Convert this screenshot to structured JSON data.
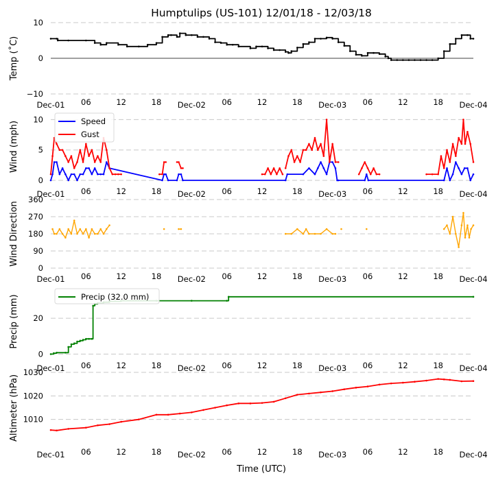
{
  "title": "Humptulips (US-101) 12/01/18 - 12/03/18",
  "xlabel": "Time (UTC)",
  "x_ticks": [
    "Dec-01",
    "06",
    "12",
    "18",
    "Dec-02",
    "06",
    "12",
    "18",
    "Dec-03",
    "06",
    "12",
    "18",
    "Dec-04"
  ],
  "x_tick_hours": [
    0,
    6,
    12,
    18,
    24,
    30,
    36,
    42,
    48,
    54,
    60,
    66,
    72
  ],
  "chart_data": [
    {
      "type": "line",
      "ylabel": "Temp ($^\\circ$C)",
      "ylabel_display": "Temp (˚C)",
      "ylim": [
        -10,
        10
      ],
      "yticks": [
        -10,
        0,
        10
      ],
      "grid_y": [
        -10,
        10
      ],
      "zero_line": true,
      "x_unit": "hours since Dec-01 00:00 UTC",
      "series": [
        {
          "name": "Temp",
          "color": "#000000",
          "x": [
            0,
            1,
            1.2,
            3,
            6,
            7.5,
            8.5,
            9.5,
            11.5,
            13,
            15,
            16.5,
            18,
            19,
            20,
            20.5,
            21.5,
            22,
            23,
            24,
            25,
            26,
            27,
            28,
            29,
            30,
            31,
            32,
            34,
            35,
            36,
            37,
            38,
            39,
            40,
            40.5,
            41,
            42,
            43,
            44,
            45,
            46,
            47,
            48,
            49,
            50,
            51,
            52,
            53,
            54,
            55,
            56,
            57,
            57.5,
            58,
            59,
            60,
            61,
            62,
            63,
            64,
            65,
            66,
            67,
            68,
            69,
            70,
            71,
            71.5,
            72
          ],
          "y": [
            5.5,
            5.5,
            5.0,
            5.0,
            5.0,
            4.3,
            3.8,
            4.3,
            3.8,
            3.3,
            3.3,
            3.8,
            4.3,
            6.0,
            6.5,
            6.5,
            6.0,
            7.0,
            6.5,
            6.5,
            6.0,
            6.0,
            5.5,
            4.5,
            4.3,
            3.8,
            3.8,
            3.3,
            2.8,
            3.3,
            3.3,
            2.8,
            2.3,
            2.3,
            1.8,
            1.5,
            2.0,
            3.0,
            4.0,
            4.5,
            5.5,
            5.5,
            5.8,
            5.5,
            4.5,
            3.5,
            2.0,
            1.0,
            0.7,
            1.5,
            1.5,
            1.2,
            0.5,
            0.0,
            -0.5,
            -0.5,
            -0.5,
            -0.5,
            -0.5,
            -0.5,
            -0.5,
            -0.5,
            0.0,
            2.0,
            4.0,
            5.5,
            6.5,
            6.5,
            5.5,
            5.5
          ]
        }
      ]
    },
    {
      "type": "line",
      "ylabel": "Wind (mph)",
      "ylim": [
        0,
        10.5
      ],
      "yticks": [
        0,
        5,
        10
      ],
      "grid_y": [
        0,
        5,
        10
      ],
      "legend": "top-left",
      "series": [
        {
          "name": "Speed",
          "color": "#0000ff",
          "x": [
            0,
            0.3,
            0.6,
            1,
            1.5,
            2,
            2.5,
            3,
            3.5,
            4,
            4.5,
            5,
            5.5,
            6,
            6.5,
            7,
            7.5,
            8,
            8.5,
            9,
            9.5,
            10,
            19,
            19.3,
            19.6,
            20,
            21.5,
            21.8,
            22.2,
            22.5,
            40,
            40.3,
            43,
            44,
            45,
            45.5,
            46,
            46.5,
            47,
            47.5,
            48,
            48.5,
            48.8,
            49,
            53.5,
            53.8,
            54.1,
            67,
            67.5,
            68,
            68.5,
            69,
            69.5,
            70,
            70.5,
            71,
            71.5,
            72
          ],
          "y": [
            0,
            1,
            3,
            3,
            1,
            2,
            1,
            0,
            1,
            1,
            0,
            1,
            1,
            2,
            2,
            1,
            2,
            1,
            1,
            1,
            3,
            2,
            0,
            1,
            1,
            0,
            0,
            1,
            1,
            0,
            0,
            1,
            1,
            2,
            1,
            2,
            3,
            2,
            1,
            3,
            3,
            2,
            0,
            0,
            0,
            1,
            0,
            0,
            2,
            0,
            1,
            3,
            2,
            1,
            2,
            2,
            0,
            1
          ]
        },
        {
          "name": "Gust",
          "color": "#ff0000",
          "x": [
            0,
            0.3,
            0.6,
            1,
            1.5,
            2,
            2.5,
            3,
            3.5,
            4,
            4.5,
            5,
            5.5,
            6,
            6.5,
            7,
            7.5,
            8,
            8.5,
            9,
            9.5,
            10,
            10.5,
            11,
            11.5,
            12
          ],
          "y": [
            1,
            4,
            7,
            6,
            5,
            5,
            4,
            3,
            4,
            2,
            3,
            5,
            3,
            6,
            4,
            5,
            3,
            4,
            3,
            7,
            5,
            2,
            1,
            1,
            1,
            1
          ],
          "segments": [
            {
              "x": [
                18.5,
                19,
                19.3,
                19.6
              ],
              "y": [
                1,
                1,
                3,
                3
              ]
            },
            {
              "x": [
                21.5,
                21.8,
                22.2,
                22.5
              ],
              "y": [
                3,
                3,
                2,
                2
              ]
            },
            {
              "x": [
                36,
                36.5,
                37,
                37.5,
                38,
                38.5,
                39,
                39.5
              ],
              "y": [
                1,
                1,
                2,
                1,
                2,
                1,
                2,
                1
              ]
            },
            {
              "x": [
                40,
                40.5,
                41,
                41.5,
                42,
                42.5,
                43,
                43.5,
                44,
                44.5,
                45,
                45.5,
                46,
                46.5,
                47,
                47.5,
                48,
                48.5,
                49
              ],
              "y": [
                2,
                4,
                5,
                3,
                4,
                3,
                5,
                5,
                6,
                5,
                7,
                5,
                6,
                4,
                10,
                3,
                6,
                3,
                3
              ]
            },
            {
              "x": [
                52.5,
                53,
                53.5,
                54,
                54.5,
                55,
                55.5,
                56
              ],
              "y": [
                1,
                2,
                3,
                2,
                1,
                2,
                1,
                1
              ]
            },
            {
              "x": [
                64,
                65,
                66,
                66.5,
                67,
                67.5,
                68,
                68.5,
                69,
                69.5,
                70,
                70.3,
                70.6,
                71,
                71.5,
                72
              ],
              "y": [
                1,
                1,
                1,
                4,
                2,
                5,
                3,
                6,
                4,
                7,
                6,
                10,
                6,
                8,
                6,
                3
              ]
            }
          ]
        }
      ]
    },
    {
      "type": "scatter",
      "ylabel": "Wind Direction",
      "ylim": [
        0,
        360
      ],
      "yticks": [
        0,
        90,
        180,
        270,
        360
      ],
      "grid_y": [
        0,
        90,
        180,
        270,
        360
      ],
      "series": [
        {
          "name": "Direction",
          "color": "#ffa500",
          "segments": [
            {
              "x": [
                0.3,
                0.6,
                1,
                1.5,
                2,
                2.5,
                3,
                3.5,
                4,
                4.5,
                5,
                5.5,
                6,
                6.5,
                7,
                7.5,
                8,
                8.5,
                9,
                9.5,
                10
              ],
              "y": [
                205,
                180,
                180,
                205,
                180,
                160,
                205,
                180,
                250,
                180,
                205,
                180,
                205,
                160,
                205,
                180,
                180,
                205,
                180,
                205,
                225
              ]
            },
            {
              "x": [
                19.3
              ],
              "y": [
                205
              ]
            },
            {
              "x": [
                21.8,
                22.2
              ],
              "y": [
                205,
                205
              ]
            },
            {
              "x": [
                40,
                41,
                42,
                43,
                43.5,
                44,
                45,
                46,
                47,
                48,
                48.5
              ],
              "y": [
                180,
                180,
                205,
                180,
                205,
                180,
                180,
                180,
                205,
                180,
                180
              ]
            },
            {
              "x": [
                49.5
              ],
              "y": [
                205
              ]
            },
            {
              "x": [
                53.8
              ],
              "y": [
                205
              ]
            },
            {
              "x": [
                67,
                67.5,
                68,
                68.5,
                69,
                69.5,
                70,
                70.3,
                70.6,
                71,
                71.3,
                71.6,
                72
              ],
              "y": [
                205,
                225,
                180,
                270,
                180,
                110,
                225,
                290,
                160,
                225,
                160,
                205,
                225
              ]
            }
          ]
        }
      ]
    },
    {
      "type": "line",
      "ylabel": "Precip (mm)",
      "ylim": [
        -1,
        35
      ],
      "yticks": [
        0,
        20
      ],
      "grid_y": [
        0,
        20
      ],
      "legend": "top-left",
      "series": [
        {
          "name": "Precip (32.0 mm)",
          "color": "#008000",
          "x": [
            0,
            0.5,
            1,
            2.5,
            3,
            3.5,
            4,
            4.5,
            5,
            5.5,
            6,
            6.5,
            7,
            7.2,
            7.5,
            8,
            9,
            10,
            12,
            18,
            24,
            30,
            30.3,
            72
          ],
          "y": [
            0,
            0.5,
            0.8,
            0.8,
            4,
            5.5,
            6,
            7,
            7.5,
            8,
            8.5,
            8.5,
            8.5,
            27,
            28,
            28.5,
            29,
            29.5,
            29.8,
            29.8,
            29.8,
            29.8,
            32,
            32
          ]
        }
      ]
    },
    {
      "type": "line",
      "ylabel": "Altimeter (hPa)",
      "ylim": [
        1000,
        1030
      ],
      "yticks": [
        1010,
        1020,
        1030
      ],
      "grid_y": [
        1010,
        1020,
        1030
      ],
      "series": [
        {
          "name": "Altimeter",
          "color": "#ff0000",
          "x": [
            0,
            1,
            3,
            6,
            8,
            10,
            12,
            15,
            18,
            20,
            22,
            24,
            26,
            28,
            30,
            32,
            34,
            36,
            38,
            40,
            42,
            44,
            46,
            48,
            50,
            52,
            54,
            56,
            58,
            60,
            62,
            64,
            66,
            67,
            68,
            70,
            72
          ],
          "y": [
            1005.5,
            1005.3,
            1006,
            1006.5,
            1007.5,
            1008,
            1009,
            1010,
            1012,
            1012,
            1012.5,
            1013,
            1014,
            1015,
            1016,
            1016.8,
            1016.8,
            1017,
            1017.5,
            1019,
            1020.5,
            1021,
            1021.5,
            1022,
            1022.8,
            1023.5,
            1024,
            1024.8,
            1025.3,
            1025.6,
            1026,
            1026.5,
            1027.2,
            1027,
            1026.8,
            1026.2,
            1026.3
          ]
        }
      ]
    }
  ]
}
